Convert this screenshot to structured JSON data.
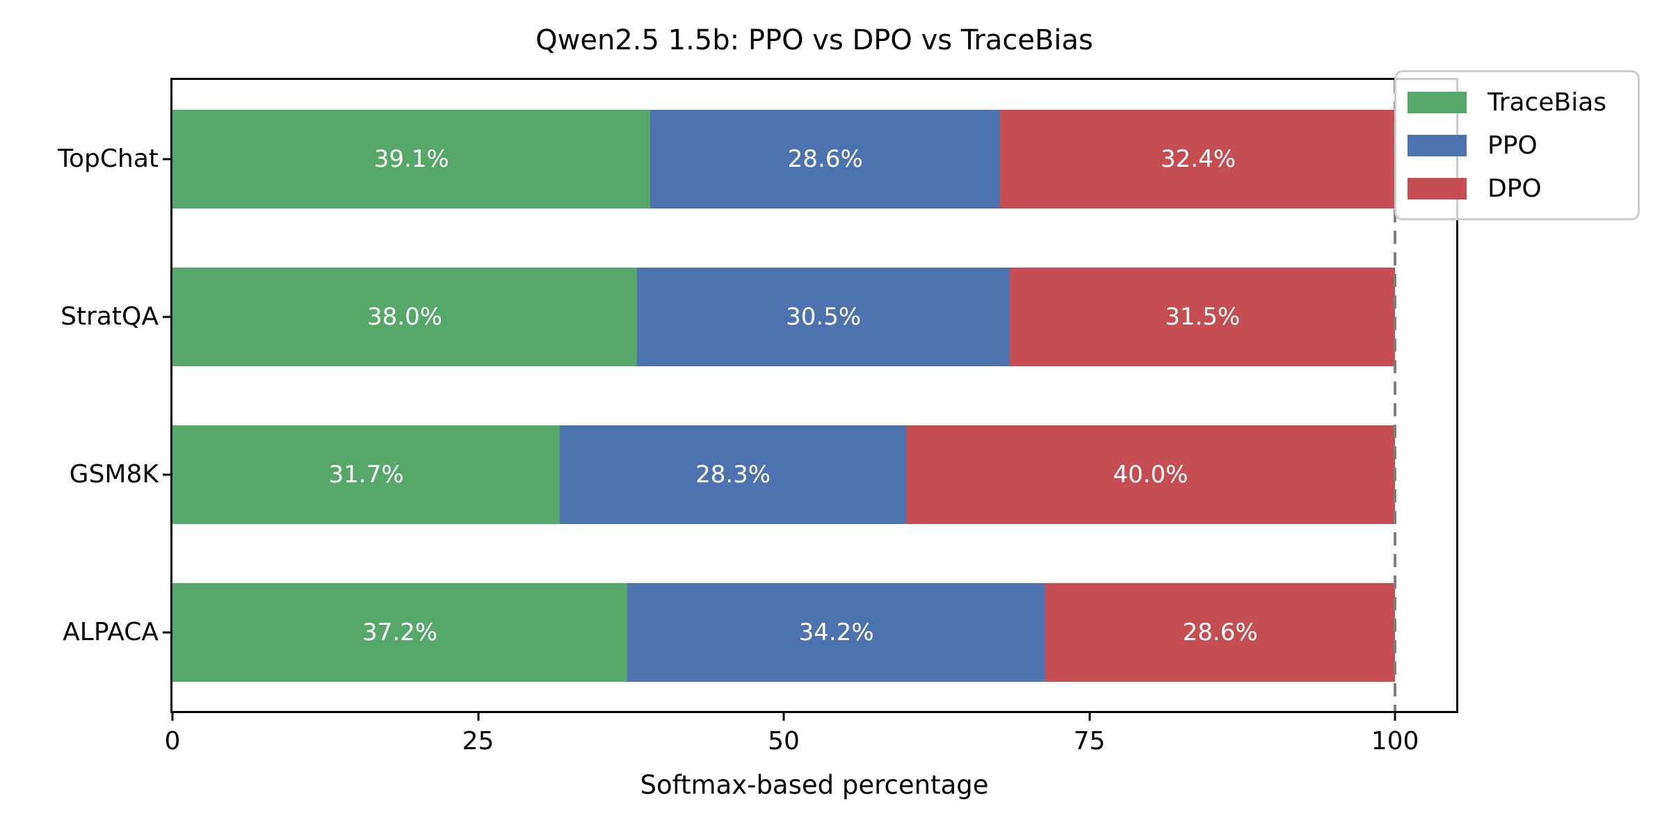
{
  "chart_data": {
    "type": "bar",
    "orientation": "horizontal",
    "stacked": true,
    "title": "Qwen2.5 1.5b: PPO vs DPO vs TraceBias",
    "xlabel": "Softmax-based percentage",
    "ylabel": "",
    "categories": [
      "TopChat",
      "StratQA",
      "GSM8K",
      "ALPACA"
    ],
    "series": [
      {
        "name": "TraceBias",
        "color": "#55a868",
        "values": [
          39.1,
          38.0,
          31.7,
          37.2
        ],
        "labels": [
          "39.1%",
          "38.0%",
          "31.7%",
          "37.2%"
        ]
      },
      {
        "name": "PPO",
        "color": "#4c72b0",
        "values": [
          28.6,
          30.5,
          28.3,
          34.2
        ],
        "labels": [
          "28.6%",
          "30.5%",
          "28.3%",
          "34.2%"
        ]
      },
      {
        "name": "DPO",
        "color": "#c44e52",
        "values": [
          32.4,
          31.5,
          40.0,
          28.6
        ],
        "labels": [
          "32.4%",
          "31.5%",
          "40.0%",
          "28.6%"
        ]
      }
    ],
    "xticks": [
      {
        "value": 0,
        "label": "0"
      },
      {
        "value": 25,
        "label": "25"
      },
      {
        "value": 50,
        "label": "50"
      },
      {
        "value": 75,
        "label": "75"
      },
      {
        "value": 100,
        "label": "100"
      }
    ],
    "xlim": [
      0,
      105
    ],
    "reference_line": {
      "x": 100,
      "color": "#7f7f7f",
      "style": "dashed"
    },
    "legend": {
      "position": "upper right",
      "entries": [
        "TraceBias",
        "PPO",
        "DPO"
      ]
    },
    "grid": false,
    "bar_label_color": "#ffffff"
  }
}
